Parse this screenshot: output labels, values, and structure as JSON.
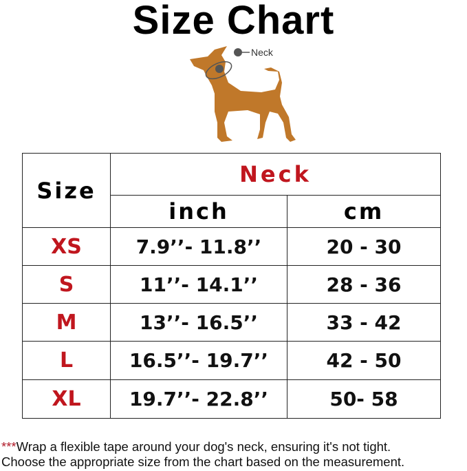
{
  "title": "Size Chart",
  "illustration": {
    "marker_label": "Neck",
    "dog_color": "#c0782a"
  },
  "table": {
    "size_header": "Size",
    "group_header": "Neck",
    "unit_headers": [
      "inch",
      "cm"
    ],
    "rows": [
      {
        "size": "XS",
        "inch": "7.9’’- 11.8’’",
        "cm": "20 - 30"
      },
      {
        "size": "S",
        "inch": "11’’- 14.1’’",
        "cm": "28 - 36"
      },
      {
        "size": "M",
        "inch": "13’’- 16.5’’",
        "cm": "33 - 42"
      },
      {
        "size": "L",
        "inch": "16.5’’- 19.7’’",
        "cm": "42 - 50"
      },
      {
        "size": "XL",
        "inch": "19.7’’- 22.8’’",
        "cm": "50- 58"
      }
    ]
  },
  "note": {
    "stars": "***",
    "line1": "Wrap a flexible tape around your dog's neck, ensuring it's not tight.",
    "line2": "Choose the appropriate size from the chart based on the measurement."
  }
}
